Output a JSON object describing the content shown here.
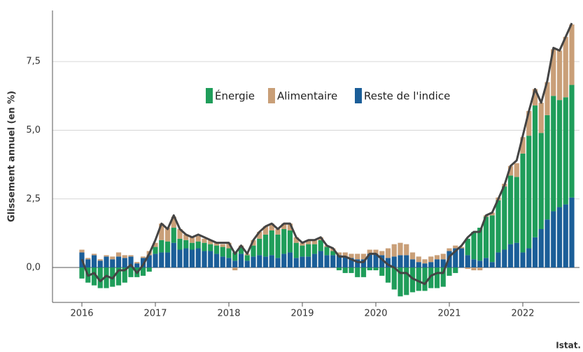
{
  "chart_data": {
    "type": "stacked-bar-line",
    "y_label": "Glissement annuel (en %)",
    "source": "Istat.",
    "categories": [
      "2016",
      null,
      null,
      null,
      null,
      null,
      null,
      null,
      null,
      null,
      null,
      null,
      "2017",
      null,
      null,
      null,
      null,
      null,
      null,
      null,
      null,
      null,
      null,
      null,
      "2018",
      null,
      null,
      null,
      null,
      null,
      null,
      null,
      null,
      null,
      null,
      null,
      "2019",
      null,
      null,
      null,
      null,
      null,
      null,
      null,
      null,
      null,
      null,
      null,
      "2020",
      null,
      null,
      null,
      null,
      null,
      null,
      null,
      null,
      null,
      null,
      null,
      "2021",
      null,
      null,
      null,
      null,
      null,
      null,
      null,
      null,
      null,
      null,
      null,
      "2022",
      null,
      null,
      null,
      null,
      null,
      null,
      null,
      null
    ],
    "series": [
      {
        "name": "Énergie",
        "color": "#1f9d5a",
        "values": [
          -0.4,
          -0.55,
          -0.65,
          -0.75,
          -0.75,
          -0.7,
          -0.65,
          -0.55,
          -0.35,
          -0.35,
          -0.3,
          -0.15,
          0.25,
          0.45,
          0.4,
          0.55,
          0.4,
          0.3,
          0.25,
          0.25,
          0.3,
          0.25,
          0.3,
          0.35,
          0.35,
          0.3,
          0.25,
          0.2,
          0.4,
          0.6,
          0.8,
          0.9,
          0.85,
          0.9,
          0.8,
          0.55,
          0.4,
          0.45,
          0.35,
          0.4,
          0.3,
          0.15,
          -0.1,
          -0.2,
          -0.2,
          -0.35,
          -0.35,
          -0.1,
          -0.1,
          -0.3,
          -0.55,
          -0.8,
          -1.05,
          -1.0,
          -0.9,
          -0.85,
          -0.85,
          -0.75,
          -0.75,
          -0.7,
          -0.3,
          -0.2,
          0.0,
          0.6,
          1.0,
          1.2,
          1.5,
          1.7,
          1.9,
          2.3,
          2.5,
          2.4,
          3.6,
          4.1,
          4.8,
          3.5,
          3.8,
          4.2,
          3.9,
          3.9,
          4.1
        ]
      },
      {
        "name": "Alimentaire",
        "color": "#c99f78",
        "values": [
          0.1,
          0.05,
          0.05,
          0.05,
          0.05,
          0.1,
          0.15,
          0.1,
          0.05,
          0.05,
          0.05,
          0.15,
          0.15,
          0.6,
          0.5,
          0.4,
          0.35,
          0.2,
          0.2,
          0.2,
          0.15,
          0.15,
          0.1,
          0.1,
          0.2,
          -0.1,
          0.05,
          0.05,
          0.2,
          0.25,
          0.3,
          0.25,
          0.2,
          0.2,
          0.25,
          0.2,
          0.1,
          0.15,
          0.15,
          0.1,
          0.05,
          0.1,
          0.1,
          0.15,
          0.15,
          0.2,
          0.2,
          0.15,
          0.15,
          0.15,
          0.35,
          0.45,
          0.45,
          0.4,
          0.25,
          0.2,
          0.15,
          0.2,
          0.15,
          0.2,
          0.1,
          0.1,
          0.05,
          -0.05,
          -0.1,
          -0.1,
          0.05,
          0.1,
          0.1,
          0.1,
          0.35,
          0.5,
          0.6,
          0.9,
          0.6,
          1.1,
          1.2,
          1.7,
          1.8,
          2.2,
          2.2
        ]
      },
      {
        "name": "Reste de l'indice",
        "color": "#1b5e98",
        "values": [
          0.55,
          0.3,
          0.45,
          0.25,
          0.4,
          0.3,
          0.4,
          0.35,
          0.4,
          0.15,
          0.35,
          0.45,
          0.5,
          0.55,
          0.55,
          0.9,
          0.65,
          0.7,
          0.65,
          0.7,
          0.6,
          0.6,
          0.5,
          0.4,
          0.35,
          0.25,
          0.5,
          0.25,
          0.4,
          0.45,
          0.4,
          0.45,
          0.35,
          0.5,
          0.55,
          0.35,
          0.4,
          0.4,
          0.5,
          0.6,
          0.45,
          0.45,
          0.45,
          0.4,
          0.35,
          0.3,
          0.3,
          0.5,
          0.5,
          0.45,
          0.35,
          0.4,
          0.45,
          0.45,
          0.3,
          0.2,
          0.15,
          0.2,
          0.3,
          0.3,
          0.6,
          0.7,
          0.7,
          0.45,
          0.3,
          0.25,
          0.35,
          0.2,
          0.55,
          0.65,
          0.85,
          0.9,
          0.55,
          0.7,
          1.1,
          1.4,
          1.75,
          2.05,
          2.2,
          2.3,
          2.55
        ]
      }
    ],
    "total": {
      "color": "#444444",
      "values": [
        0.3,
        -0.3,
        -0.2,
        -0.5,
        -0.3,
        -0.4,
        -0.1,
        -0.1,
        0.1,
        -0.2,
        0.1,
        0.5,
        1.0,
        1.6,
        1.4,
        1.9,
        1.4,
        1.2,
        1.1,
        1.2,
        1.1,
        1.0,
        0.9,
        0.9,
        0.9,
        0.5,
        0.8,
        0.5,
        1.0,
        1.3,
        1.5,
        1.6,
        1.4,
        1.6,
        1.6,
        1.1,
        0.9,
        1.0,
        1.0,
        1.1,
        0.8,
        0.7,
        0.4,
        0.4,
        0.3,
        0.2,
        0.2,
        0.5,
        0.5,
        0.3,
        0.1,
        0.0,
        -0.2,
        -0.2,
        -0.4,
        -0.5,
        -0.6,
        -0.3,
        -0.2,
        -0.2,
        0.4,
        0.6,
        0.8,
        1.1,
        1.3,
        1.3,
        1.9,
        2.0,
        2.5,
        3.0,
        3.7,
        3.9,
        4.8,
        5.7,
        6.5,
        6.0,
        6.8,
        8.0,
        7.9,
        8.4,
        8.9
      ]
    },
    "ylim": [
      -1.27,
      9.36
    ],
    "yticks": [
      {
        "value": 0,
        "label": "0,0"
      },
      {
        "value": 2.5,
        "label": "2,5"
      },
      {
        "value": 5,
        "label": "5,0"
      },
      {
        "value": 7.5,
        "label": "7,5"
      }
    ],
    "grid": true
  }
}
